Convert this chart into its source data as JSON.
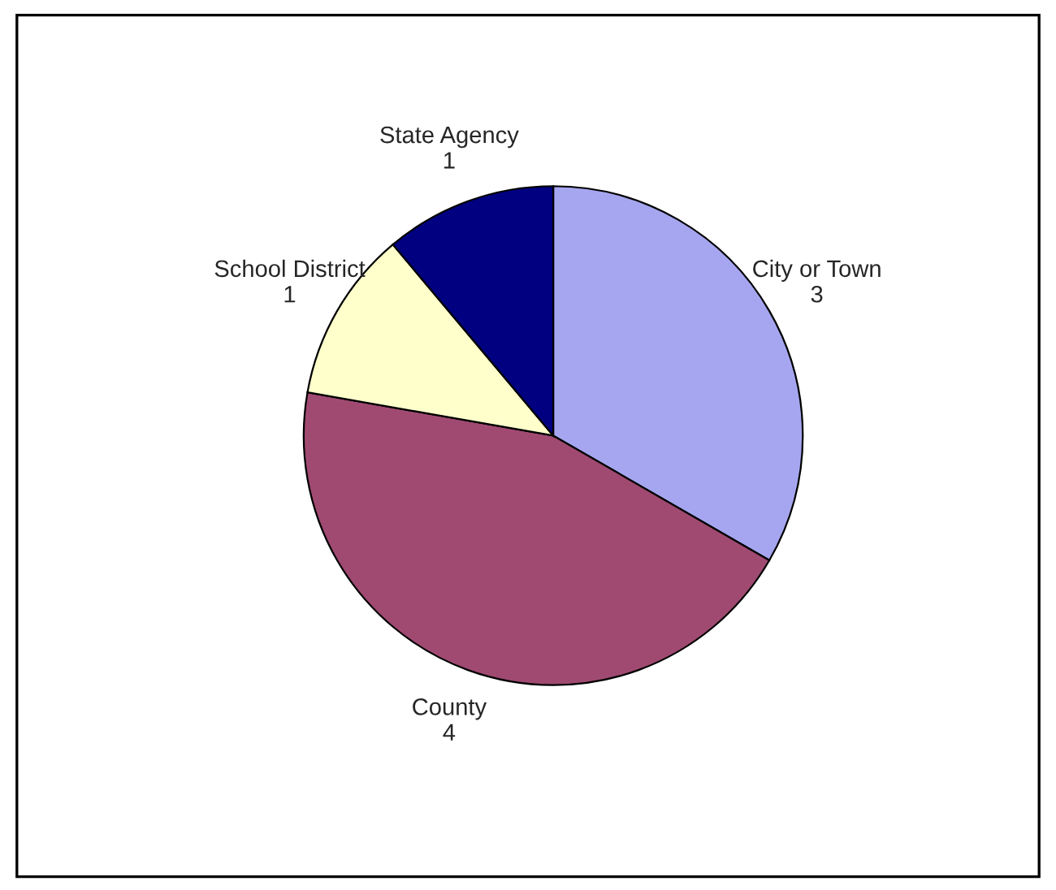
{
  "chart_data": {
    "type": "pie",
    "categories": [
      "City or Town",
      "County",
      "School District",
      "State Agency"
    ],
    "values": [
      3,
      4,
      1,
      1
    ],
    "colors": [
      "#a6a6f0",
      "#a04a72",
      "#ffffcc",
      "#000080"
    ],
    "data_labels": true,
    "legend": false
  }
}
